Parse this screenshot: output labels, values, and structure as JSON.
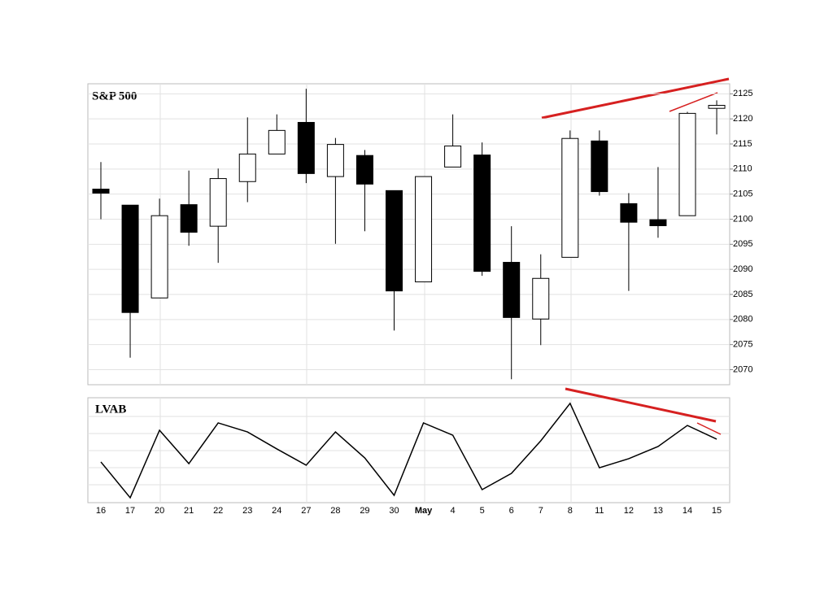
{
  "chart_data": [
    {
      "type": "candlestick",
      "title": "S&P 500",
      "categories": [
        "16",
        "17",
        "20",
        "21",
        "22",
        "23",
        "24",
        "27",
        "28",
        "29",
        "30",
        "May",
        "4",
        "5",
        "6",
        "7",
        "8",
        "11",
        "12",
        "13",
        "14",
        "15"
      ],
      "open": [
        2106.0,
        2102.8,
        2084.3,
        2102.9,
        2098.6,
        2107.5,
        2113.0,
        2119.3,
        2108.5,
        2112.7,
        2105.7,
        2087.5,
        2110.4,
        2112.8,
        2091.4,
        2080.1,
        2092.4,
        2115.6,
        2103.1,
        2099.9,
        2100.7,
        2122.1
      ],
      "high": [
        2111.4,
        2102.8,
        2104.1,
        2109.7,
        2110.1,
        2120.3,
        2120.9,
        2126.0,
        2116.2,
        2113.8,
        2105.7,
        2108.5,
        2120.9,
        2115.3,
        2098.6,
        2093.0,
        2117.7,
        2117.7,
        2105.2,
        2110.4,
        2121.4,
        2123.7
      ],
      "low": [
        2100.0,
        2072.4,
        2084.3,
        2094.7,
        2091.3,
        2103.4,
        2113.0,
        2107.2,
        2095.1,
        2097.6,
        2077.8,
        2087.5,
        2110.4,
        2088.7,
        2068.1,
        2074.9,
        2092.4,
        2104.7,
        2085.7,
        2096.3,
        2100.7,
        2116.9
      ],
      "close": [
        2105.2,
        2081.4,
        2100.7,
        2097.4,
        2108.1,
        2113.0,
        2117.7,
        2109.1,
        2114.9,
        2107.0,
        2085.7,
        2108.5,
        2114.6,
        2089.6,
        2080.4,
        2088.2,
        2116.1,
        2105.5,
        2099.4,
        2098.7,
        2121.1,
        2122.7
      ],
      "up_color": "#ffffff",
      "down_color": "#000000",
      "ylim": [
        2067,
        2127
      ],
      "yticks": [
        2070,
        2075,
        2080,
        2085,
        2090,
        2095,
        2100,
        2105,
        2110,
        2115,
        2120,
        2125
      ],
      "grid": true
    },
    {
      "type": "line",
      "title": "LVAB",
      "categories": [
        "16",
        "17",
        "20",
        "21",
        "22",
        "23",
        "24",
        "27",
        "28",
        "29",
        "30",
        "May",
        "4",
        "5",
        "6",
        "7",
        "8",
        "11",
        "12",
        "13",
        "14",
        "15"
      ],
      "values": [
        38.8,
        4.7,
        69.0,
        37.2,
        76.0,
        67.4,
        51.2,
        35.7,
        67.4,
        42.6,
        7.0,
        76.0,
        64.3,
        12.4,
        27.9,
        58.9,
        94.6,
        33.3,
        41.9,
        53.5,
        73.6,
        60.5
      ],
      "color": "#000000",
      "ylim": [
        0,
        100
      ]
    }
  ]
}
